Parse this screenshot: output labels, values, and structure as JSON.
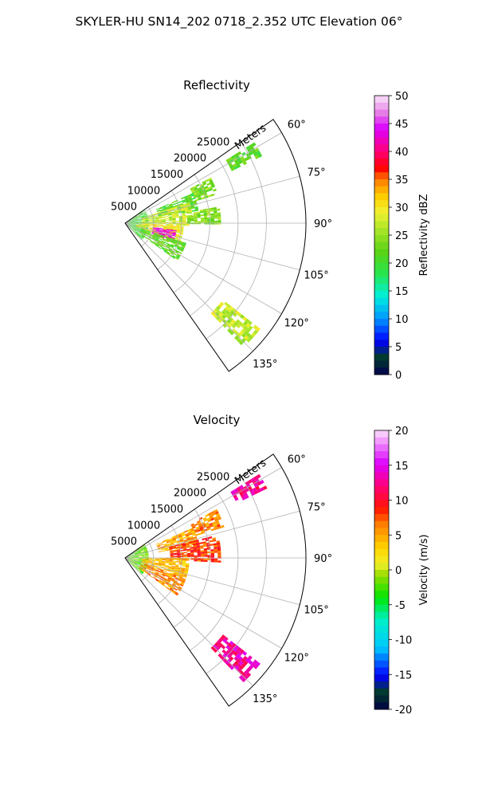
{
  "figure": {
    "title": "SKYLER-HU  SN14_202  0718_2.352 UTC Elevation 06°"
  },
  "chart_data": [
    {
      "type": "heatmap",
      "title": "Reflectivity",
      "radial_axis_label": "Meters",
      "radial_ticks": [
        "5000",
        "10000",
        "15000",
        "20000",
        "25000"
      ],
      "radial_tick_values": [
        5000,
        10000,
        15000,
        20000,
        25000
      ],
      "radial_range": [
        0,
        32000
      ],
      "azimuth_ticks": [
        "60°",
        "75°",
        "90°",
        "105°",
        "120°",
        "135°"
      ],
      "azimuth_tick_values": [
        60,
        75,
        90,
        105,
        120,
        135
      ],
      "azimuth_range": [
        55,
        145
      ],
      "grid": true,
      "colorbar": {
        "label": "Reflectivity dBZ",
        "range": [
          0,
          50
        ],
        "ticks": [
          "0",
          "5",
          "10",
          "15",
          "20",
          "25",
          "30",
          "35",
          "40",
          "45",
          "50"
        ],
        "tick_values": [
          0,
          5,
          10,
          15,
          20,
          25,
          30,
          35,
          40,
          45,
          50
        ]
      },
      "echo_regions": [
        {
          "az": [
            56,
            135
          ],
          "r": [
            0,
            4000
          ],
          "value": 20
        },
        {
          "az": [
            58,
            64
          ],
          "r": [
            21000,
            27000
          ],
          "value": 22
        },
        {
          "az": [
            62,
            72
          ],
          "r": [
            13000,
            17000
          ],
          "value": 24
        },
        {
          "az": [
            66,
            80
          ],
          "r": [
            6000,
            13000
          ],
          "value": 21
        },
        {
          "az": [
            72,
            92
          ],
          "r": [
            3000,
            12000
          ],
          "value": 27
        },
        {
          "az": [
            80,
            90
          ],
          "r": [
            11000,
            17000
          ],
          "value": 24
        },
        {
          "az": [
            92,
            108
          ],
          "r": [
            2000,
            10000
          ],
          "value": 30
        },
        {
          "az": [
            98,
            112
          ],
          "r": [
            5000,
            9000
          ],
          "value": 44
        },
        {
          "az": [
            108,
            126
          ],
          "r": [
            3000,
            11000
          ],
          "value": 22
        },
        {
          "az": [
            128,
            136
          ],
          "r": [
            22000,
            30000
          ],
          "value": 27
        }
      ]
    },
    {
      "type": "heatmap",
      "title": "Velocity",
      "radial_axis_label": "Meters",
      "radial_ticks": [
        "5000",
        "10000",
        "15000",
        "20000",
        "25000"
      ],
      "radial_tick_values": [
        5000,
        10000,
        15000,
        20000,
        25000
      ],
      "radial_range": [
        0,
        32000
      ],
      "azimuth_ticks": [
        "60°",
        "75°",
        "90°",
        "105°",
        "120°",
        "135°"
      ],
      "azimuth_tick_values": [
        60,
        75,
        90,
        105,
        120,
        135
      ],
      "azimuth_range": [
        55,
        145
      ],
      "grid": true,
      "colorbar": {
        "label": "Velocity (m/s)",
        "range": [
          -20,
          20
        ],
        "ticks": [
          "-20",
          "-15",
          "-10",
          "-5",
          "0",
          "5",
          "10",
          "15",
          "20"
        ],
        "tick_values": [
          -20,
          -15,
          -10,
          -5,
          0,
          5,
          10,
          15,
          20
        ]
      },
      "echo_regions": [
        {
          "az": [
            56,
            135
          ],
          "r": [
            0,
            4000
          ],
          "value": -2
        },
        {
          "az": [
            58,
            64
          ],
          "r": [
            22000,
            28000
          ],
          "value": 12
        },
        {
          "az": [
            62,
            72
          ],
          "r": [
            13000,
            18000
          ],
          "value": 6
        },
        {
          "az": [
            66,
            80
          ],
          "r": [
            6000,
            13000
          ],
          "value": 5
        },
        {
          "az": [
            76,
            92
          ],
          "r": [
            8000,
            17000
          ],
          "value": 8
        },
        {
          "az": [
            90,
            108
          ],
          "r": [
            3000,
            11000
          ],
          "value": 4
        },
        {
          "az": [
            108,
            126
          ],
          "r": [
            3000,
            11000
          ],
          "value": 6
        },
        {
          "az": [
            128,
            136
          ],
          "r": [
            22000,
            30000
          ],
          "value": 13
        }
      ]
    }
  ]
}
